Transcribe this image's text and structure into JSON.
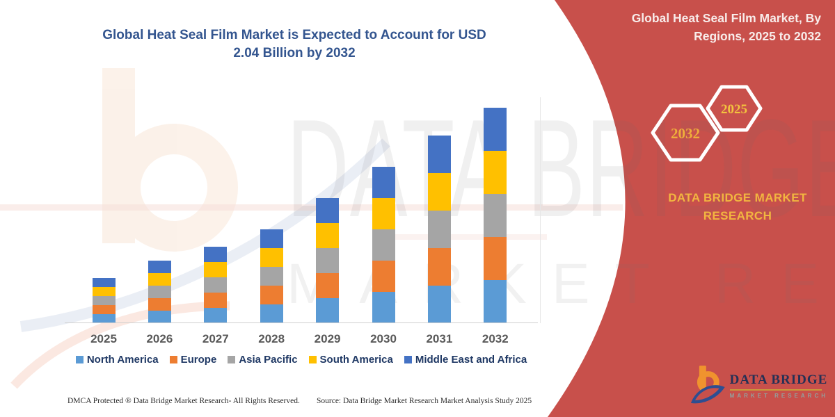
{
  "title": "Global Heat Seal Film Market is Expected to Account for USD 2.04 Billion by 2032",
  "side_panel": {
    "heading": "Global Heat Seal Film Market, By Regions, 2025 to 2032",
    "hexagon_large_label": "2032",
    "hexagon_small_label": "2025",
    "brand_line1": "DATA BRIDGE MARKET",
    "brand_line2": "RESEARCH",
    "panel_color": "#c8504b",
    "accent_yellow": "#f2b640"
  },
  "watermark": {
    "line1": "DATA BRIDGE",
    "line2": "MARKET RESEARCH"
  },
  "logo": {
    "name": "DATA BRIDGE",
    "subtitle": "MARKET RESEARCH"
  },
  "footer": {
    "dmca": "DMCA Protected ® Data Bridge Market Research-  All Rights Reserved.",
    "source": "Source: Data Bridge Market Research  Market Analysis Study 2025"
  },
  "chart_data": {
    "type": "bar",
    "stacked": true,
    "title": "Global Heat Seal Film Market is Expected to Account for USD 2.04 Billion by 2032",
    "xlabel": "",
    "ylabel": "",
    "unit": "USD billion (values estimated from bar heights; 2032 total labeled 2.04)",
    "grid": false,
    "y_axis_shown": false,
    "legend_position": "bottom",
    "categories": [
      "2025",
      "2026",
      "2027",
      "2028",
      "2029",
      "2030",
      "2031",
      "2032"
    ],
    "series": [
      {
        "name": "North America",
        "color": "#5B9BD5",
        "values": [
          0.088,
          0.116,
          0.144,
          0.174,
          0.234,
          0.292,
          0.352,
          0.408
        ]
      },
      {
        "name": "Europe",
        "color": "#ED7D31",
        "values": [
          0.088,
          0.116,
          0.144,
          0.174,
          0.234,
          0.292,
          0.352,
          0.408
        ]
      },
      {
        "name": "Asia Pacific",
        "color": "#A5A5A5",
        "values": [
          0.088,
          0.116,
          0.144,
          0.174,
          0.234,
          0.292,
          0.352,
          0.408
        ]
      },
      {
        "name": "South America",
        "color": "#FFC000",
        "values": [
          0.088,
          0.116,
          0.144,
          0.174,
          0.234,
          0.292,
          0.352,
          0.408
        ]
      },
      {
        "name": "Middle East and Africa",
        "color": "#4472C4",
        "values": [
          0.088,
          0.116,
          0.144,
          0.174,
          0.234,
          0.292,
          0.352,
          0.408
        ]
      }
    ],
    "totals": [
      0.44,
      0.58,
      0.72,
      0.87,
      1.17,
      1.46,
      1.76,
      2.04
    ]
  }
}
